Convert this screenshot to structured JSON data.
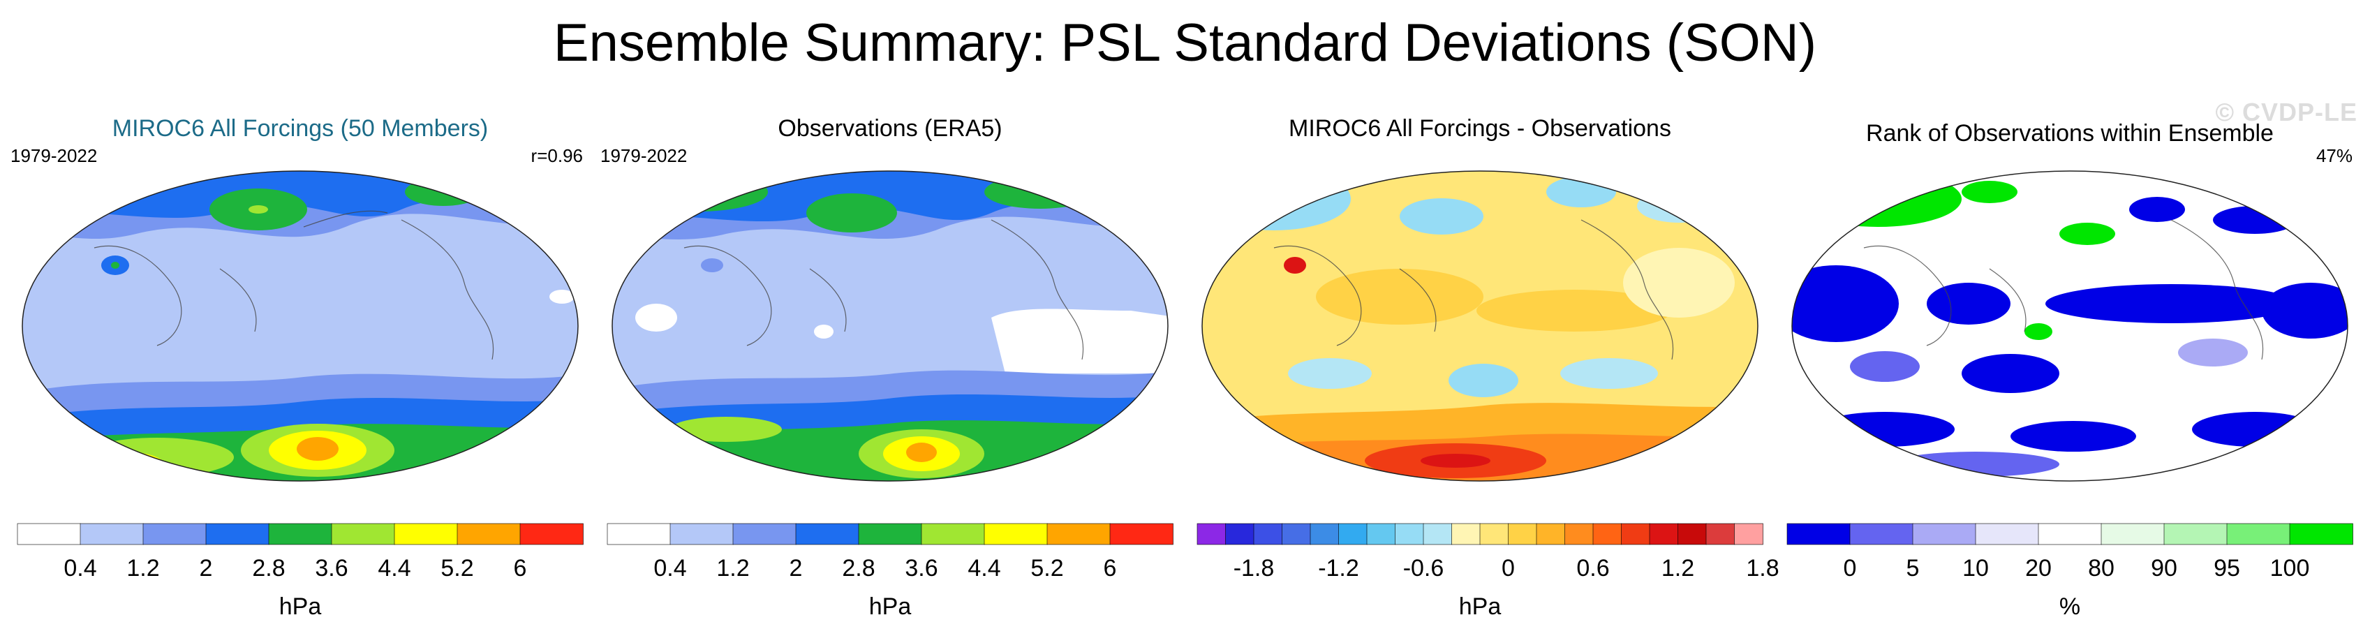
{
  "title": "Ensemble Summary: PSL Standard Deviations (SON)",
  "watermark": "© CVDP-LE",
  "panels": [
    {
      "title": "MIROC6 All Forcings (50 Members)",
      "period": "1979-2022",
      "stat": "r=0.96",
      "colorbar": {
        "unit": "hPa",
        "colors": [
          "#ffffff",
          "#b4c8f8",
          "#7896f0",
          "#1e6ef0",
          "#1eb43c",
          "#a0e632",
          "#ffff00",
          "#ffa500",
          "#ff2814"
        ],
        "tick_labels": [
          "0.4",
          "1.2",
          "2",
          "2.8",
          "3.6",
          "4.4",
          "5.2",
          "6"
        ]
      }
    },
    {
      "title": "Observations (ERA5)",
      "period": "1979-2022",
      "stat": "",
      "colorbar": {
        "unit": "hPa",
        "colors": [
          "#ffffff",
          "#b4c8f8",
          "#7896f0",
          "#1e6ef0",
          "#1eb43c",
          "#a0e632",
          "#ffff00",
          "#ffa500",
          "#ff2814"
        ],
        "tick_labels": [
          "0.4",
          "1.2",
          "2",
          "2.8",
          "3.6",
          "4.4",
          "5.2",
          "6"
        ]
      }
    },
    {
      "title": "MIROC6 All Forcings - Observations",
      "period": "",
      "stat": "",
      "colorbar": {
        "unit": "hPa",
        "colors": [
          "#8c28e6",
          "#2828dc",
          "#3c50e6",
          "#466ee6",
          "#3c8ce6",
          "#32aaf0",
          "#64c8f0",
          "#96dcf5",
          "#b4e6f5",
          "#fff5b4",
          "#ffe678",
          "#ffd246",
          "#ffb428",
          "#ff8c1e",
          "#ff6414",
          "#f03c14",
          "#dc1414",
          "#c80a0a",
          "#dc3c3c",
          "#ffa0a0"
        ],
        "tick_labels": [
          "-1.8",
          "-1.2",
          "-0.6",
          "0",
          "0.6",
          "1.2",
          "1.8"
        ]
      }
    },
    {
      "title": "Rank of Observations within Ensemble",
      "period": "",
      "stat": "47%",
      "colorbar": {
        "unit": "%",
        "colors": [
          "#0000e6",
          "#6464f0",
          "#aaaaf5",
          "#e6e6fa",
          "#ffffff",
          "#e6fae6",
          "#b4f5b4",
          "#78f078",
          "#00e600"
        ],
        "tick_labels": [
          "0",
          "5",
          "10",
          "20",
          "80",
          "90",
          "95",
          "100"
        ]
      }
    }
  ]
}
